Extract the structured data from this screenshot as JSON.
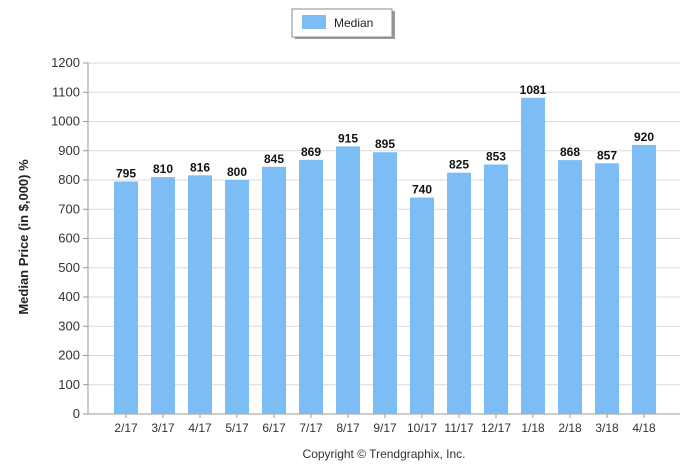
{
  "chart_data": {
    "type": "bar",
    "categories": [
      "2/17",
      "3/17",
      "4/17",
      "5/17",
      "6/17",
      "7/17",
      "8/17",
      "9/17",
      "10/17",
      "11/17",
      "12/17",
      "1/18",
      "2/18",
      "3/18",
      "4/18"
    ],
    "series": [
      {
        "name": "Median",
        "values": [
          795,
          810,
          816,
          800,
          845,
          869,
          915,
          895,
          740,
          825,
          853,
          1081,
          868,
          857,
          920
        ]
      }
    ],
    "ylabel": "Median Price (in $,000) %",
    "ylim": [
      0,
      1200
    ],
    "yticks": [
      0,
      100,
      200,
      300,
      400,
      500,
      600,
      700,
      800,
      900,
      1000,
      1100,
      1200
    ],
    "grid": true,
    "legend_position": "top-center",
    "bar_color": "#7cbdf5",
    "copyright": "Copyright © Trendgraphix, Inc."
  }
}
